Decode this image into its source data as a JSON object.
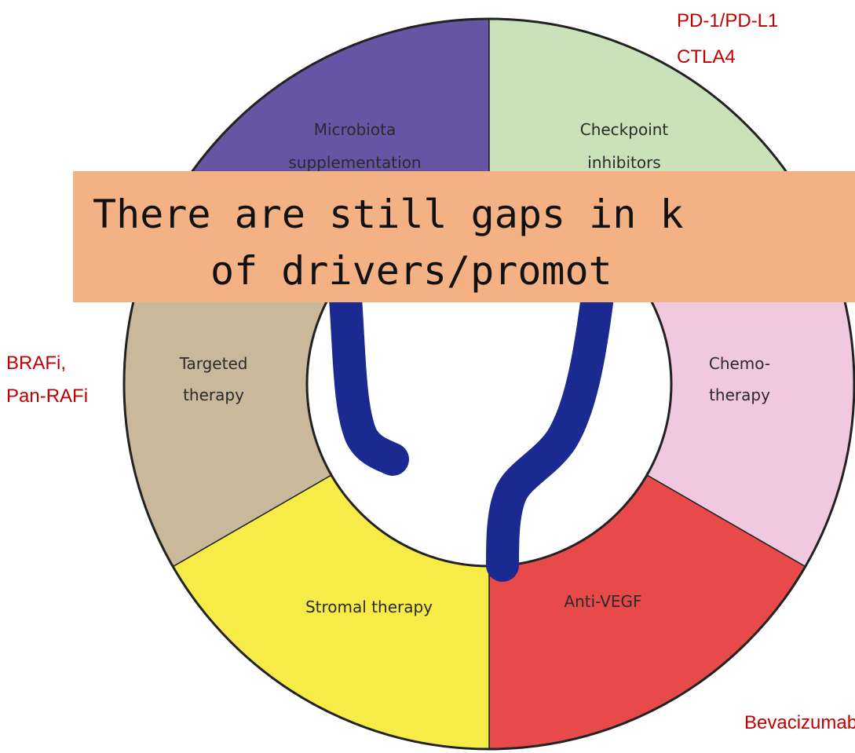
{
  "segments": [
    {
      "lines": [
        "Microbiota",
        "supplementation"
      ]
    },
    {
      "lines": [
        "Checkpoint",
        "inhibitors"
      ]
    },
    {
      "lines": [
        "Chemo-",
        "therapy"
      ]
    },
    {
      "lines": [
        "Anti-VEGF"
      ]
    },
    {
      "lines": [
        "Stromal therapy"
      ]
    },
    {
      "lines": [
        "Targeted",
        "therapy"
      ]
    }
  ],
  "banner": {
    "lines": [
      "There are still gaps in k",
      "of drivers/promot"
    ]
  },
  "annotations": {
    "checkpoint": [
      "PD-1/PD-L1",
      "CTLA4"
    ],
    "targeted": [
      "BRAFi,",
      "Pan-RAFi"
    ],
    "anti_vegf": [
      "Bevacizumab"
    ]
  }
}
